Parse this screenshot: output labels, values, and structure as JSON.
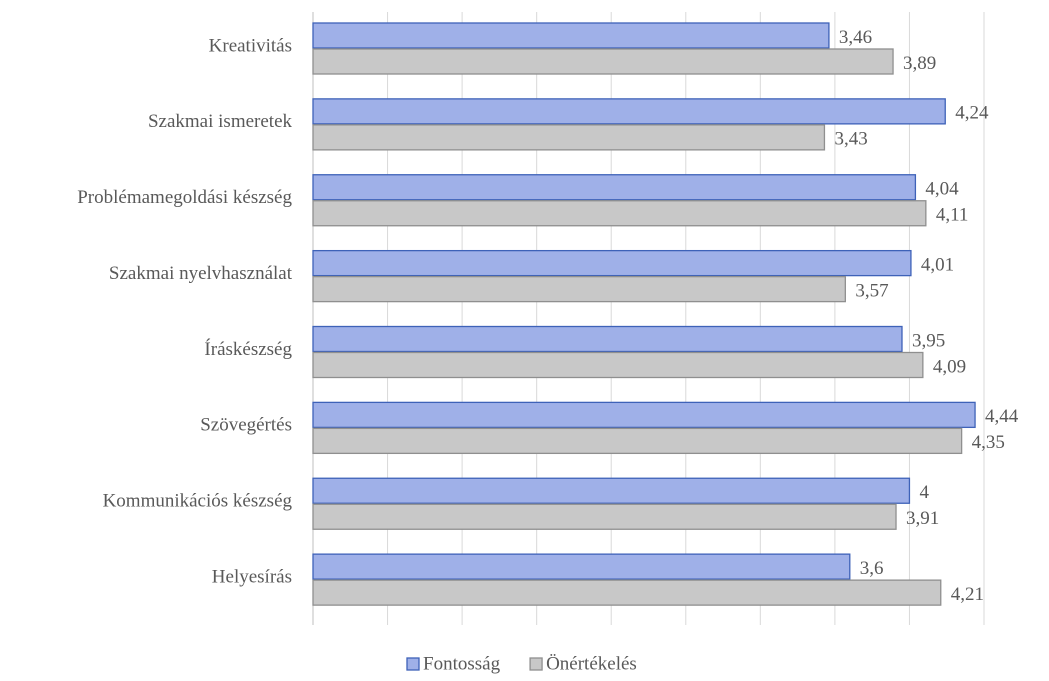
{
  "chart_data": {
    "type": "barh",
    "categories": [
      "Kreativitás",
      "Szakmai ismeretek",
      "Problémamegoldási készség",
      "Szakmai nyelvhasználat",
      "Íráskészség",
      "Szövegértés",
      "Kommunikációs készség",
      "Helyesírás"
    ],
    "series": [
      {
        "name": "Fontosság",
        "color": "#9fb0e8",
        "values": [
          3.46,
          4.24,
          4.04,
          4.01,
          3.95,
          4.44,
          4,
          3.6
        ],
        "value_labels": [
          "3,46",
          "4,24",
          "4,04",
          "4,01",
          "3,95",
          "4,44",
          "4",
          "3,6"
        ]
      },
      {
        "name": "Önértékelés",
        "color": "#c8c8c8",
        "values": [
          3.89,
          3.43,
          4.11,
          3.57,
          4.09,
          4.35,
          3.91,
          4.21
        ],
        "value_labels": [
          "3,89",
          "3,43",
          "4,11",
          "3,57",
          "4,09",
          "4,35",
          "3,91",
          "4,21"
        ]
      }
    ],
    "xlim": [
      0,
      4.5
    ],
    "xticks": [
      0,
      0.5,
      1,
      1.5,
      2,
      2.5,
      3,
      3.5,
      4,
      4.5
    ],
    "grid": true,
    "legend": "bottom"
  }
}
